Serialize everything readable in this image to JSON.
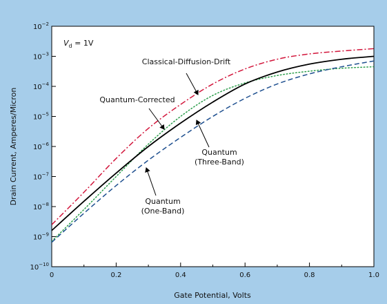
{
  "chart_data": {
    "type": "line",
    "xlabel": "Gate Potential, Volts",
    "ylabel": "Drain Current, Amperes/Micron",
    "annotation_vd": "V",
    "annotation_vd_sub": "d",
    "annotation_vd_value": " = 1V",
    "xlim": [
      0,
      1.0
    ],
    "ylim": [
      1e-10,
      0.01
    ],
    "yscale": "log",
    "grid": false,
    "x_ticks": [
      0,
      0.2,
      0.4,
      0.6,
      0.8,
      1.0
    ],
    "x_tick_labels": [
      "0",
      "0.2",
      "0.4",
      "0.6",
      "0.8",
      "1.0"
    ],
    "y_ticks": [
      -10,
      -9,
      -8,
      -7,
      -6,
      -5,
      -4,
      -3,
      -2
    ],
    "y_tick_base": "10",
    "y_tick_exponents": [
      "−10",
      "−9",
      "−8",
      "−7",
      "−6",
      "−5",
      "−4",
      "−3",
      "−2"
    ],
    "series": [
      {
        "name": "Classical-Diffusion-Drift",
        "label_lines": [
          "Classical-Diffusion-Drift"
        ],
        "color": "#d2143a",
        "dash": "dashdot",
        "x": [
          0,
          0.1,
          0.2,
          0.3,
          0.4,
          0.5,
          0.6,
          0.7,
          0.8,
          0.9,
          1.0
        ],
        "y": [
          2.5e-09,
          3e-08,
          4e-07,
          4e-06,
          2.5e-05,
          0.00012,
          0.00038,
          0.0008,
          0.0012,
          0.0015,
          0.0018
        ]
      },
      {
        "name": "Quantum-Corrected",
        "label_lines": [
          "Quantum-Corrected"
        ],
        "color": "#2a9d4a",
        "dash": "dotted",
        "x": [
          0,
          0.1,
          0.2,
          0.3,
          0.4,
          0.5,
          0.6,
          0.7,
          0.8,
          0.9,
          1.0
        ],
        "y": [
          7e-10,
          8e-09,
          1e-07,
          1.2e-06,
          1e-05,
          5e-05,
          0.00013,
          0.00023,
          0.00032,
          0.0004,
          0.00045
        ]
      },
      {
        "name": "Quantum (Three-Band)",
        "label_lines": [
          "Quantum",
          "(Three-Band)"
        ],
        "color": "#000000",
        "dash": "solid",
        "x": [
          0,
          0.1,
          0.2,
          0.3,
          0.4,
          0.5,
          0.6,
          0.7,
          0.8,
          0.9,
          1.0
        ],
        "y": [
          1.6e-09,
          1.5e-08,
          1.3e-07,
          1e-06,
          6e-06,
          3e-05,
          0.00012,
          0.0003,
          0.00055,
          0.0008,
          0.001
        ]
      },
      {
        "name": "Quantum (One-Band)",
        "label_lines": [
          "Quantum",
          "(One-Band)"
        ],
        "color": "#1e4f8f",
        "dash": "dashed",
        "x": [
          0,
          0.1,
          0.2,
          0.3,
          0.4,
          0.5,
          0.6,
          0.7,
          0.8,
          0.9,
          1.0
        ],
        "y": [
          6.5e-10,
          6e-09,
          5e-08,
          3.5e-07,
          2e-06,
          1e-05,
          4e-05,
          0.00012,
          0.00026,
          0.00045,
          0.0007
        ]
      }
    ]
  }
}
